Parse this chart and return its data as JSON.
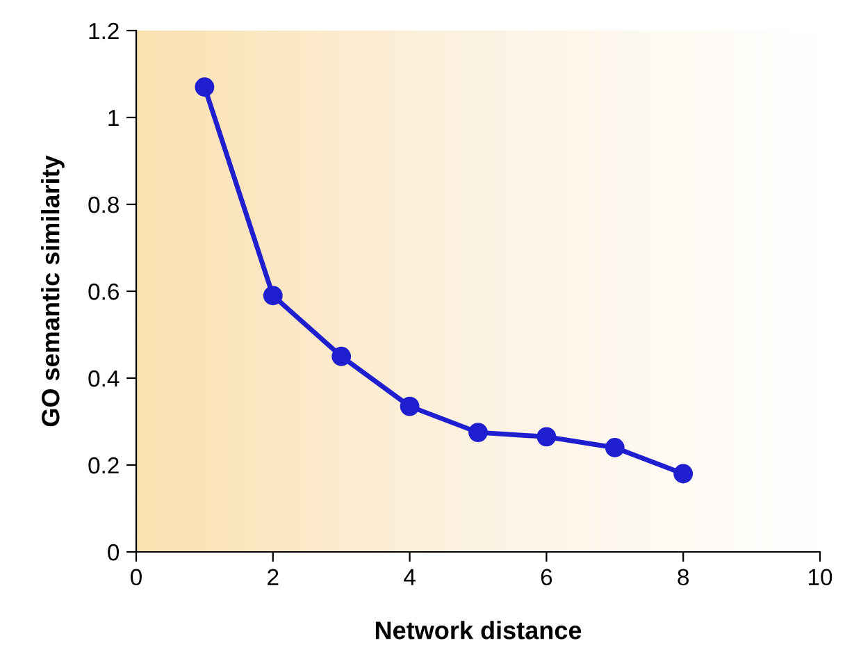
{
  "chart_data": {
    "type": "line",
    "xlabel": "Network distance",
    "ylabel": "GO semantic similarity",
    "x": [
      1,
      2,
      3,
      4,
      5,
      6,
      7,
      8
    ],
    "series": [
      {
        "color": "#1f1fd0",
        "values": [
          1.07,
          0.59,
          0.45,
          0.335,
          0.275,
          0.265,
          0.24,
          0.18
        ]
      }
    ],
    "xlim": [
      0,
      10
    ],
    "xticks": [
      0,
      2,
      4,
      6,
      8,
      10
    ],
    "ylim": [
      0,
      1.2
    ],
    "yticks": [
      0,
      0.2,
      0.4,
      0.6,
      0.8,
      1,
      1.2
    ],
    "grid": false,
    "legend": false,
    "marker": "circle",
    "line_style": "solid"
  }
}
